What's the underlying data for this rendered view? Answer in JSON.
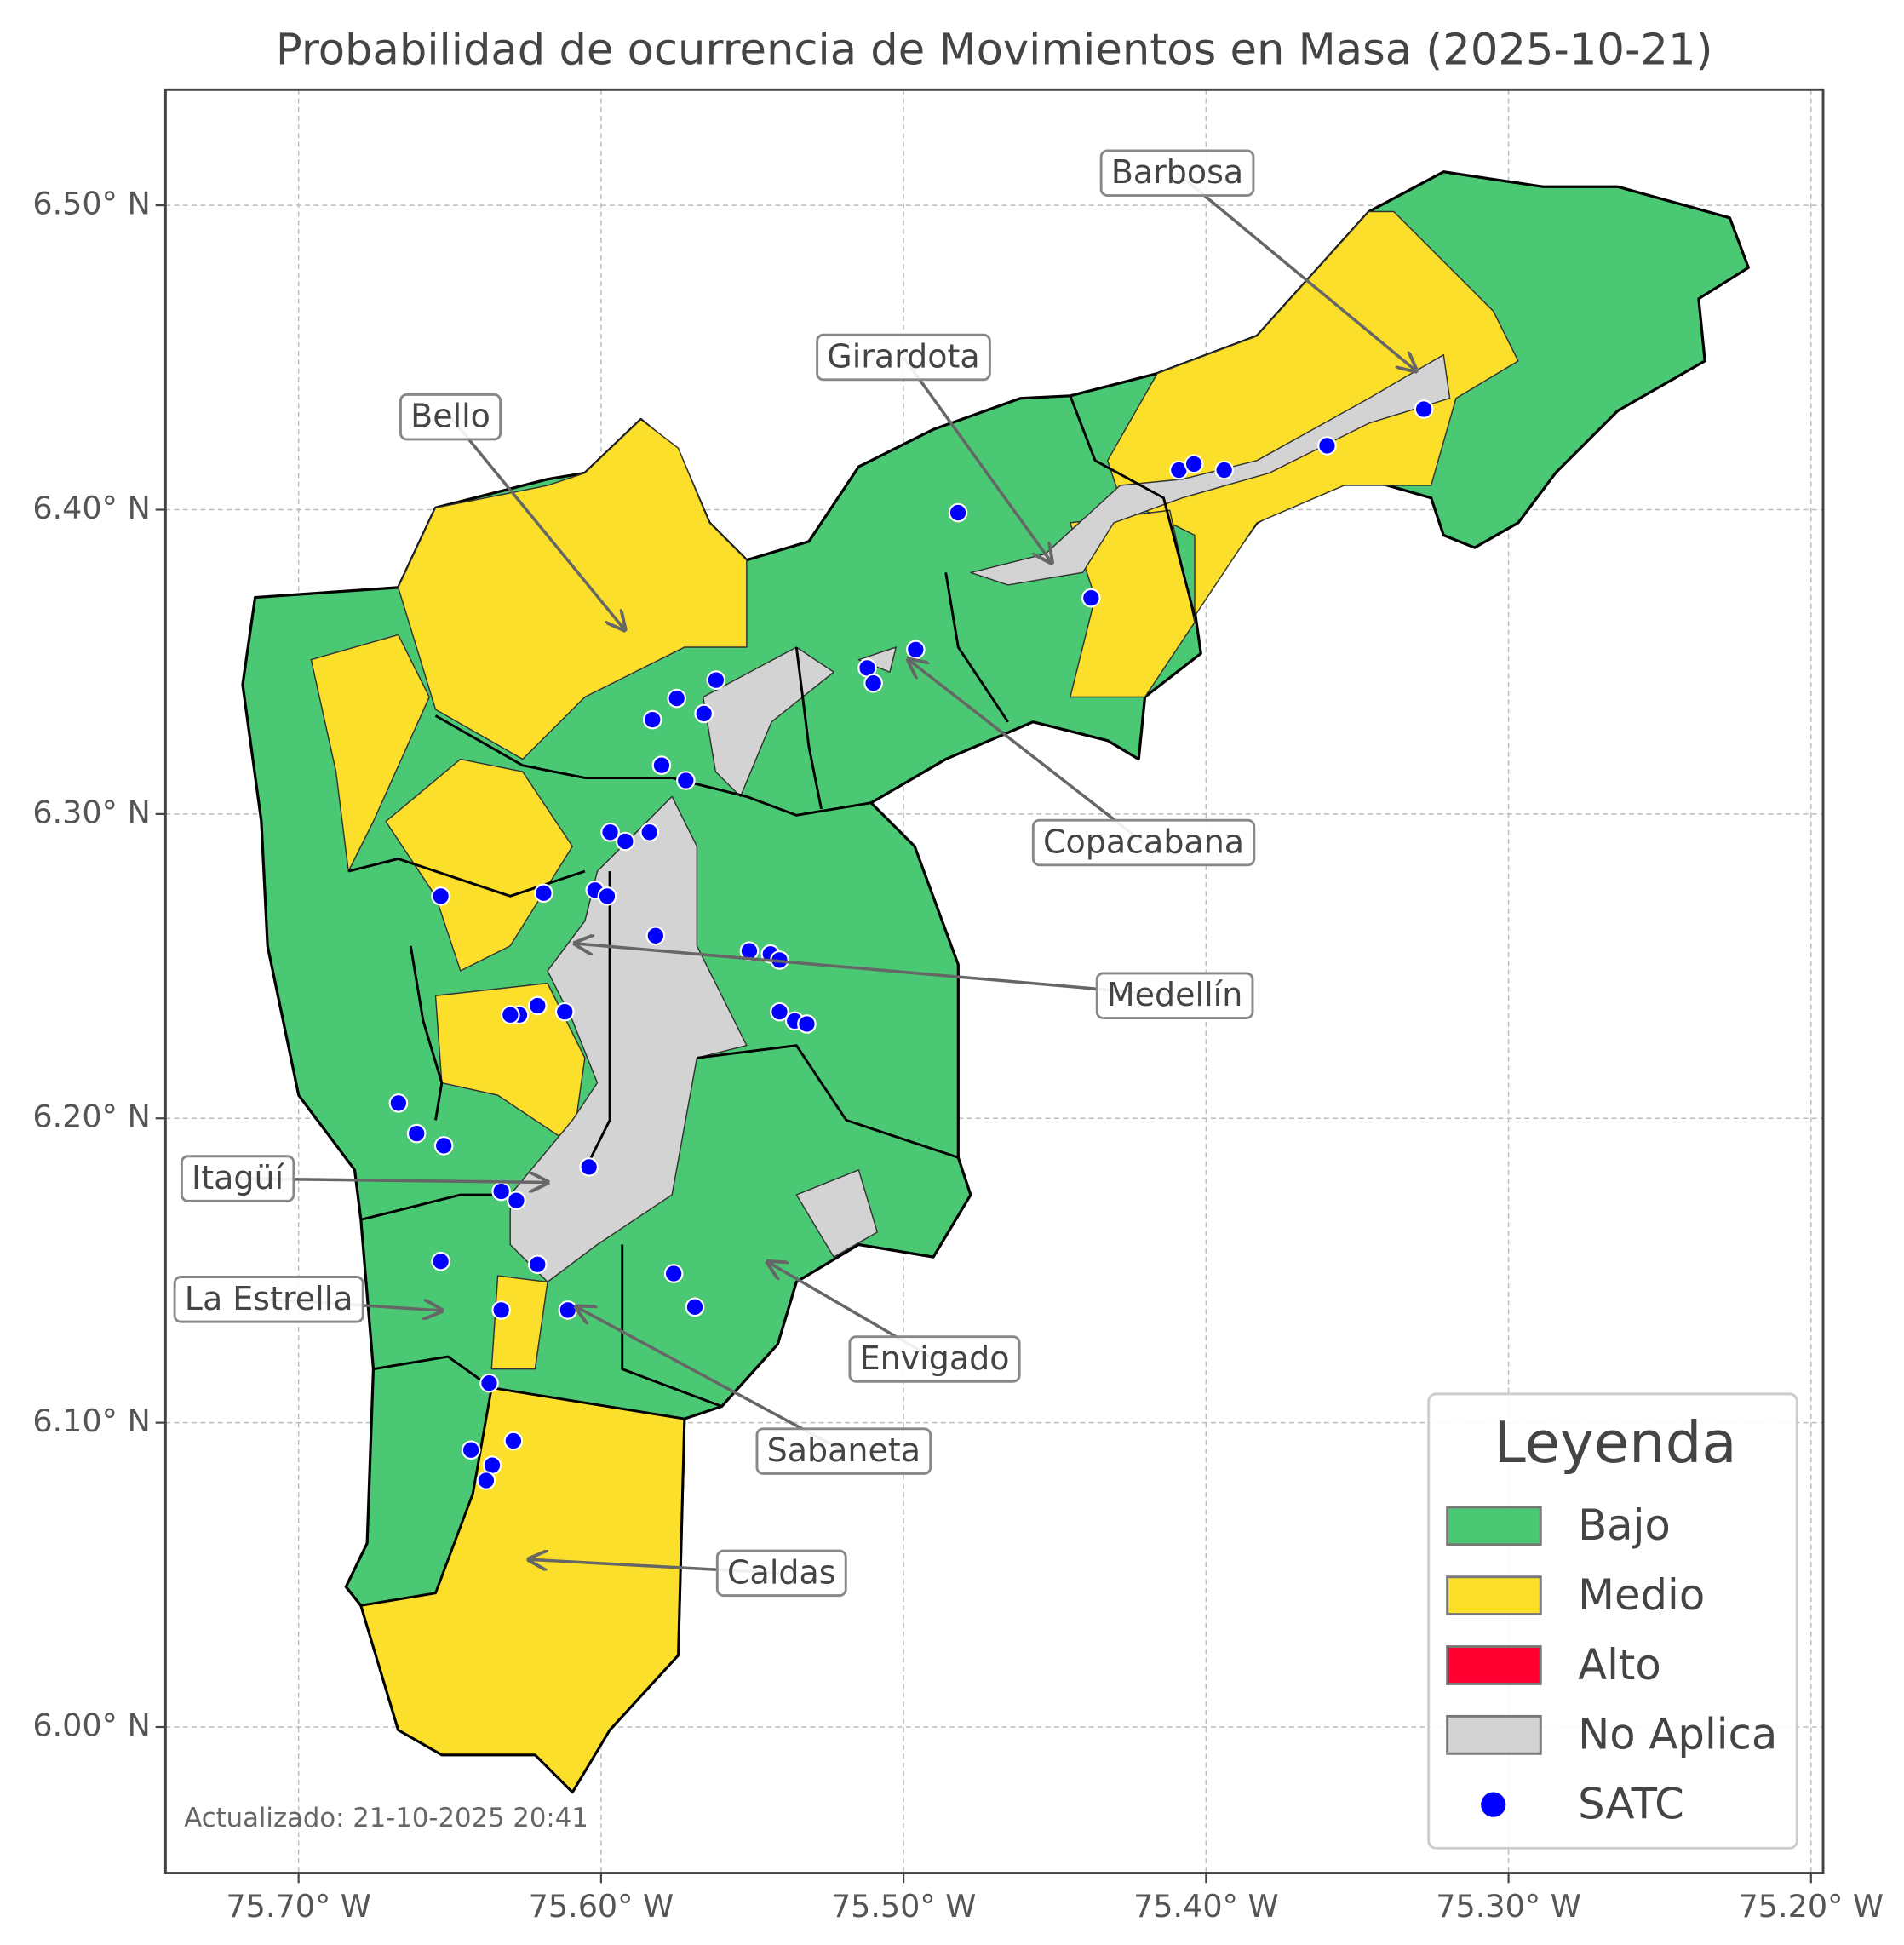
{
  "chart_data": {
    "type": "map",
    "title": "Probabilidad de ocurrencia de Movimientos en Masa (2025-10-21)",
    "xlim": [
      -75.744,
      -75.196
    ],
    "ylim": [
      5.952,
      6.538
    ],
    "xticks": [
      {
        "value": -75.7,
        "label": "75.70° W"
      },
      {
        "value": -75.6,
        "label": "75.60° W"
      },
      {
        "value": -75.5,
        "label": "75.50° W"
      },
      {
        "value": -75.4,
        "label": "75.40° W"
      },
      {
        "value": -75.3,
        "label": "75.30° W"
      },
      {
        "value": -75.2,
        "label": "75.20° W"
      }
    ],
    "yticks": [
      {
        "value": 6.0,
        "label": "6.00° N"
      },
      {
        "value": 6.1,
        "label": "6.10° N"
      },
      {
        "value": 6.2,
        "label": "6.20° N"
      },
      {
        "value": 6.3,
        "label": "6.30° N"
      },
      {
        "value": 6.4,
        "label": "6.40° N"
      },
      {
        "value": 6.5,
        "label": "6.50° N"
      }
    ],
    "grid": true,
    "legend": {
      "title": "Leyenda",
      "position": "lower right",
      "categories": [
        {
          "name": "Bajo",
          "color": "#4bc874"
        },
        {
          "name": "Medio",
          "color": "#fbdf2a"
        },
        {
          "name": "Alto",
          "color": "#ff0030"
        },
        {
          "name": "No Aplica",
          "color": "#d3d3d3"
        }
      ]
    },
    "points": {
      "name": "SATC",
      "color": "#0000ff",
      "x": [
        -75.482,
        -75.409,
        -75.404,
        -75.394,
        -75.36,
        -75.328,
        -75.438,
        -75.496,
        -75.512,
        -75.51,
        -75.562,
        -75.575,
        -75.566,
        -75.583,
        -75.58,
        -75.572,
        -75.597,
        -75.592,
        -75.584,
        -75.602,
        -75.598,
        -75.619,
        -75.653,
        -75.582,
        -75.551,
        -75.544,
        -75.541,
        -75.541,
        -75.536,
        -75.532,
        -75.612,
        -75.621,
        -75.627,
        -75.63,
        -75.667,
        -75.661,
        -75.652,
        -75.604,
        -75.633,
        -75.628,
        -75.653,
        -75.621,
        -75.576,
        -75.569,
        -75.611,
        -75.633,
        -75.637,
        -75.643,
        -75.629,
        -75.636,
        -75.638
      ],
      "y": [
        6.399,
        6.413,
        6.415,
        6.413,
        6.421,
        6.433,
        6.371,
        6.354,
        6.348,
        6.343,
        6.344,
        6.338,
        6.333,
        6.331,
        6.316,
        6.311,
        6.294,
        6.291,
        6.294,
        6.275,
        6.273,
        6.274,
        6.273,
        6.26,
        6.255,
        6.254,
        6.252,
        6.235,
        6.232,
        6.231,
        6.235,
        6.237,
        6.234,
        6.234,
        6.205,
        6.195,
        6.191,
        6.184,
        6.176,
        6.173,
        6.153,
        6.152,
        6.149,
        6.138,
        6.137,
        6.137,
        6.113,
        6.091,
        6.094,
        6.086,
        6.081
      ]
    },
    "annotations": [
      "Barbosa",
      "Girardota",
      "Bello",
      "Copacabana",
      "Medellín",
      "Itagüí",
      "La Estrella",
      "Envigado",
      "Sabaneta",
      "Caldas"
    ],
    "footnote": "Actualizado: 21-10-2025 20:41"
  }
}
